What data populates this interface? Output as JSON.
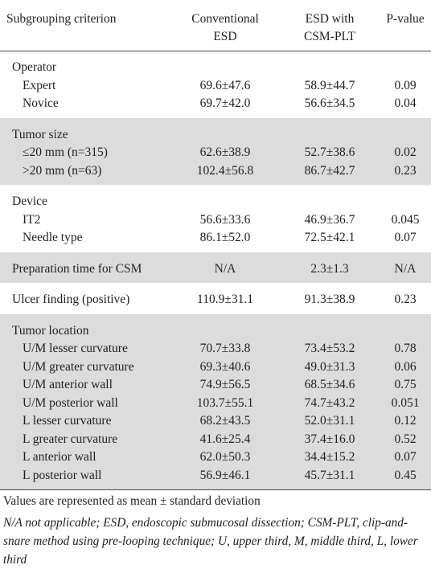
{
  "header": {
    "col1": "Subgrouping criterion",
    "col2_line1": "Conventional",
    "col2_line2": "ESD",
    "col3_line1": "ESD with",
    "col3_line2": "CSM-PLT",
    "col4": "P-value"
  },
  "groups": [
    {
      "title": "Operator",
      "rows": [
        {
          "label": "Expert",
          "conventional": "69.6±47.6",
          "plt": "58.9±44.7",
          "p": "0.09"
        },
        {
          "label": "Novice",
          "conventional": "69.7±42.0",
          "plt": "56.6±34.5",
          "p": "0.04"
        }
      ]
    },
    {
      "title": "Tumor size",
      "rows": [
        {
          "label": "≤20 mm (n=315)",
          "conventional": "62.6±38.9",
          "plt": "52.7±38.6",
          "p": "0.02"
        },
        {
          "label": ">20 mm (n=63)",
          "conventional": "102.4±56.8",
          "plt": "86.7±42.7",
          "p": "0.23"
        }
      ]
    },
    {
      "title": "Device",
      "rows": [
        {
          "label": "IT2",
          "conventional": "56.6±33.6",
          "plt": "46.9±36.7",
          "p": "0.045"
        },
        {
          "label": "Needle type",
          "conventional": "86.1±52.0",
          "plt": "72.5±42.1",
          "p": "0.07"
        }
      ]
    },
    {
      "title": "Preparation time for CSM",
      "single": {
        "conventional": "N/A",
        "plt": "2.3±1.3",
        "p": "N/A"
      }
    },
    {
      "title": "Ulcer finding (positive)",
      "single": {
        "conventional": "110.9±31.1",
        "plt": "91.3±38.9",
        "p": "0.23"
      }
    },
    {
      "title": "Tumor location",
      "rows": [
        {
          "label": "U/M lesser curvature",
          "conventional": "70.7±33.8",
          "plt": "73.4±53.2",
          "p": "0.78"
        },
        {
          "label": "U/M greater curvature",
          "conventional": "69.3±40.6",
          "plt": "49.0±31.3",
          "p": "0.06"
        },
        {
          "label": "U/M anterior wall",
          "conventional": "74.9±56.5",
          "plt": "68.5±34.6",
          "p": "0.75"
        },
        {
          "label": "U/M posterior wall",
          "conventional": "103.7±55.1",
          "plt": "74.7±43.2",
          "p": "0.051"
        },
        {
          "label": "L lesser curvature",
          "conventional": "68.2±43.5",
          "plt": "52.0±31.1",
          "p": "0.12"
        },
        {
          "label": "L greater curvature",
          "conventional": "41.6±25.4",
          "plt": "37.4±16.0",
          "p": "0.52"
        },
        {
          "label": "L anterior wall",
          "conventional": "62.0±50.3",
          "plt": "34.4±15.2",
          "p": "0.07"
        },
        {
          "label": "L posterior wall",
          "conventional": "56.9±46.1",
          "plt": "45.7±31.1",
          "p": "0.45"
        }
      ]
    }
  ],
  "notes": {
    "values_note": "Values are represented as mean ± standard deviation",
    "abbrev_note": "N/A not applicable; ESD, endoscopic submucosal dissection; CSM-PLT, clip-and-snare method using pre-looping technique; U, upper third, M, middle third, L, lower third"
  }
}
